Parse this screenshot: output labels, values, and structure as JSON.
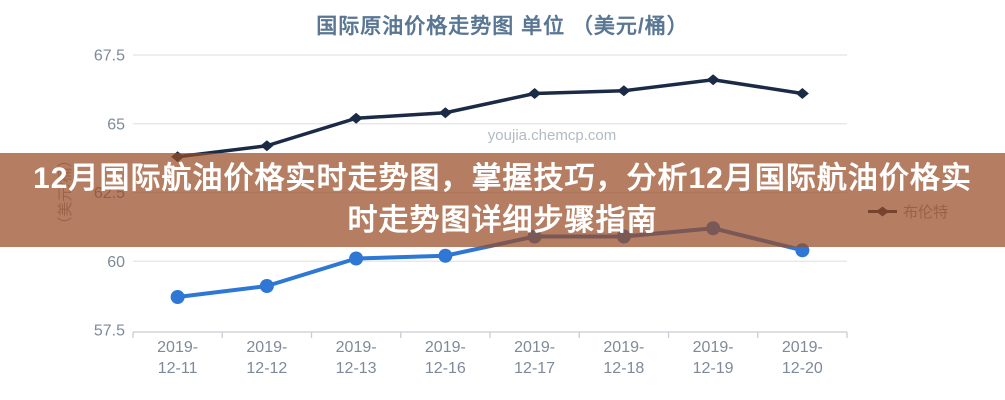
{
  "header": {
    "title": "国际原油价格走势图 单位 （美元/桶）",
    "title_color": "#597693"
  },
  "banner": {
    "lines": [
      "12月国际航油价格实时走势图，掌握技巧，分析12月国际航油价格实",
      "时走势图详细步骤指南"
    ],
    "bg_rgba": "rgba(152,76,38,0.72)",
    "text_color": "#ffffff"
  },
  "watermark": {
    "text": "youjia.chemcp.com",
    "color": "#b3bac4"
  },
  "legend": {
    "label": "布伦特",
    "marker": "diamond",
    "marker_color": "#1b2b45",
    "text_color": "#999999"
  },
  "axis_style": {
    "tick_label_color": "#7e8a99",
    "grid_color": "#e4e4e4",
    "axis_line_color": "#c9ccd1",
    "ylabel_color": "#9aa0a8"
  },
  "chart_data": {
    "type": "line",
    "title": "国际原油价格走势图 单位 （美元/桶）",
    "categories": [
      "2019-12-11",
      "2019-12-12",
      "2019-12-13",
      "2019-12-16",
      "2019-12-17",
      "2019-12-18",
      "2019-12-19",
      "2019-12-20"
    ],
    "series": [
      {
        "name": "布伦特",
        "color": "#1b2b45",
        "marker": "diamond",
        "line_width": 3.5,
        "values": [
          63.8,
          64.2,
          65.2,
          65.4,
          66.1,
          66.2,
          66.6,
          66.1
        ]
      },
      {
        "name": "",
        "color": "#2e77d4",
        "marker": "circle",
        "line_width": 4,
        "values": [
          58.7,
          59.1,
          60.1,
          60.2,
          60.9,
          60.9,
          61.2,
          60.4
        ]
      }
    ],
    "ylabel": "（美元/桶）",
    "yticks": [
      67.5,
      65,
      62.5,
      60,
      57.5
    ],
    "ylim": [
      57.5,
      67.5
    ],
    "grid": true,
    "legend_position": "right-middle",
    "legend_entries_visible": [
      "布伦特"
    ]
  }
}
